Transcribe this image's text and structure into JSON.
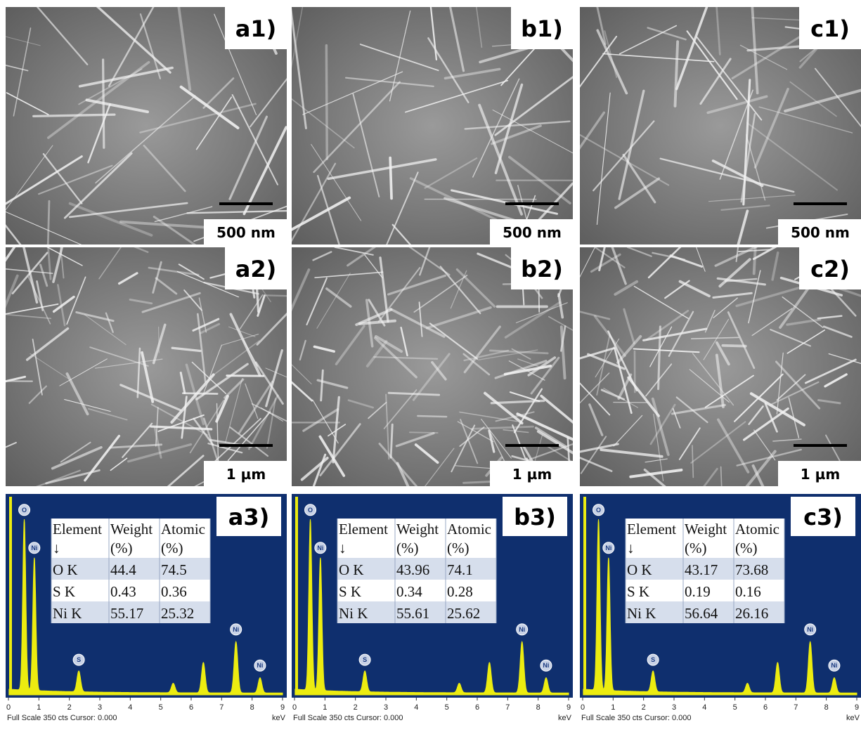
{
  "panels": [
    {
      "sem": [
        {
          "label": "a1)",
          "scale": "500 nm"
        },
        {
          "label": "a2)",
          "scale": "1 µm"
        }
      ],
      "eds": {
        "label": "a3)",
        "header": [
          "Element",
          "Weight",
          "Atomic"
        ],
        "subheader": [
          "↓",
          "(%)",
          "(%)"
        ],
        "rows": [
          [
            "O K",
            44.4,
            74.5
          ],
          [
            "S K",
            0.43,
            0.36
          ],
          [
            "Ni K",
            55.17,
            25.32
          ]
        ]
      }
    },
    {
      "sem": [
        {
          "label": "b1)",
          "scale": "500 nm"
        },
        {
          "label": "b2)",
          "scale": "1 µm"
        }
      ],
      "eds": {
        "label": "b3)",
        "header": [
          "Element",
          "Weight",
          "Atomic"
        ],
        "subheader": [
          "↓",
          "(%)",
          "(%)"
        ],
        "rows": [
          [
            "O K",
            43.96,
            74.1
          ],
          [
            "S K",
            0.34,
            0.28
          ],
          [
            "Ni K",
            55.61,
            25.62
          ]
        ]
      }
    },
    {
      "sem": [
        {
          "label": "c1)",
          "scale": "500 nm"
        },
        {
          "label": "c2)",
          "scale": "1 µm"
        }
      ],
      "eds": {
        "label": "c3)",
        "header": [
          "Element",
          "Weight",
          "Atomic"
        ],
        "subheader": [
          "↓",
          "(%)",
          "(%)"
        ],
        "rows": [
          [
            "O K",
            43.17,
            73.68
          ],
          [
            "S K",
            0.19,
            0.16
          ],
          [
            "Ni K",
            56.64,
            26.16
          ]
        ]
      }
    }
  ],
  "spectrum": {
    "ticks": [
      0,
      1,
      2,
      3,
      4,
      5,
      6,
      7,
      8,
      9
    ],
    "unit": "keV",
    "footer": "Full Scale 350 cts Cursor: 0.000",
    "peak_labels": [
      "O",
      "Ni",
      "S",
      "Ni",
      "Ni"
    ]
  }
}
